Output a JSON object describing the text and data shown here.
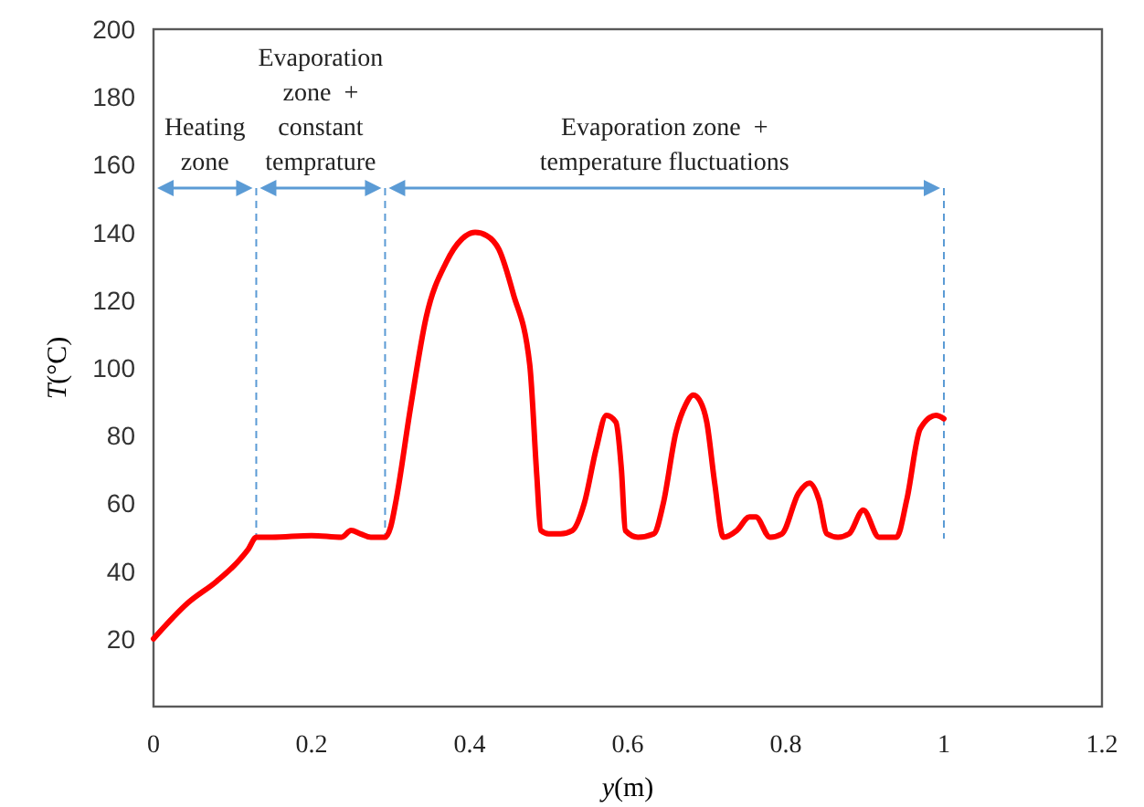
{
  "chart_data": {
    "type": "line",
    "xlabel": "y(m)",
    "ylabel": "T(°C)",
    "xlim": [
      0,
      1.2
    ],
    "xticks": [
      0,
      0.2,
      0.4,
      0.6,
      0.8,
      1,
      1.2
    ],
    "ylim": [
      0,
      200
    ],
    "yticks": [
      20,
      40,
      60,
      80,
      100,
      120,
      140,
      160,
      180,
      200
    ],
    "grid": false,
    "marker": "none",
    "line_style": "solid",
    "series": [
      {
        "color": "#ff0000",
        "x": [
          0,
          0.044,
          0.08,
          0.106,
          0.12,
          0.13,
          0.15,
          0.2,
          0.238,
          0.25,
          0.262,
          0.275,
          0.293,
          0.3,
          0.307,
          0.325,
          0.345,
          0.37,
          0.39,
          0.407,
          0.422,
          0.437,
          0.455,
          0.476,
          0.485,
          0.49,
          0.5,
          0.515,
          0.53,
          0.545,
          0.56,
          0.573,
          0.585,
          0.592,
          0.597,
          0.613,
          0.633,
          0.645,
          0.661,
          0.673,
          0.683,
          0.692,
          0.7,
          0.71,
          0.721,
          0.738,
          0.754,
          0.762,
          0.78,
          0.795,
          0.816,
          0.83,
          0.842,
          0.852,
          0.866,
          0.88,
          0.898,
          0.918,
          0.94,
          0.953,
          0.97,
          0.99,
          1.0
        ],
        "values": [
          20,
          30.7,
          37,
          42.6,
          46.5,
          50,
          50,
          50.5,
          50,
          52,
          51,
          50,
          50,
          53,
          61,
          88,
          115,
          131,
          138,
          140,
          139,
          135,
          122,
          101,
          68,
          52,
          51,
          51,
          52,
          60,
          76,
          86,
          84,
          70,
          52,
          50,
          51,
          60,
          81,
          89,
          92,
          90,
          84,
          66,
          50,
          52,
          56,
          56,
          50,
          51,
          63,
          66,
          61,
          51,
          50,
          51,
          58,
          50,
          50,
          61,
          82,
          86,
          85
        ]
      }
    ],
    "ref_lines": [
      {
        "axis": "x",
        "value": 0.13,
        "color": "#5b9bd5",
        "line_style": "dashed"
      },
      {
        "axis": "x",
        "value": 0.293,
        "color": "#5b9bd5",
        "line_style": "dashed"
      },
      {
        "axis": "x",
        "value": 1.0,
        "color": "#5b9bd5",
        "line_style": "dashed"
      }
    ],
    "annotations": [
      "Heating\nzone",
      "Evaporation\nzone  +\nconstant\ntemprature",
      "Evaporation zone  +\ntemperature fluctuations"
    ]
  }
}
